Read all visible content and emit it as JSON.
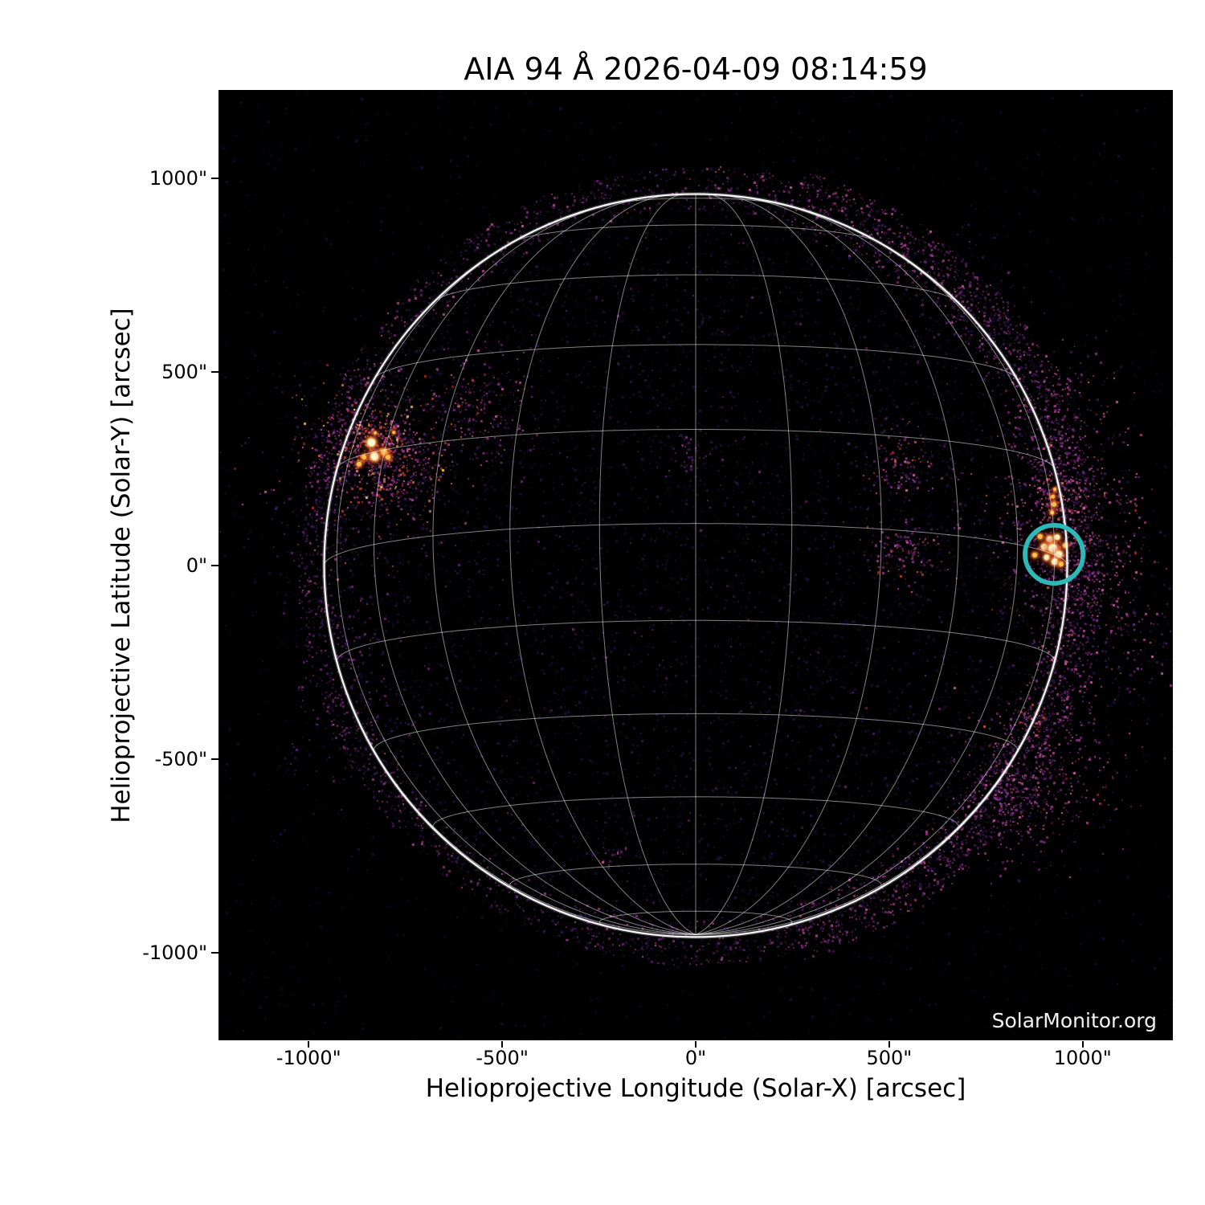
{
  "chart_data": {
    "type": "heatmap",
    "title": "AIA 94 Å 2026-04-09 08:14:59",
    "instrument": "AIA",
    "wavelength": "94 Å",
    "datetime": "2026-04-09 08:14:59",
    "watermark": "SolarMonitor.org",
    "xlabel": "Helioprojective Longitude (Solar-X) [arcsec]",
    "ylabel": "Helioprojective Latitude (Solar-Y) [arcsec]",
    "xlim": [
      -1233,
      1233
    ],
    "ylim": [
      -1227,
      1229
    ],
    "x_ticks": [
      {
        "value": -1000,
        "label": "-1000\""
      },
      {
        "value": -500,
        "label": "-500\""
      },
      {
        "value": 0,
        "label": "0\""
      },
      {
        "value": 500,
        "label": "500\""
      },
      {
        "value": 1000,
        "label": "1000\""
      }
    ],
    "y_ticks": [
      {
        "value": 1000,
        "label": "1000\""
      },
      {
        "value": 500,
        "label": "500\""
      },
      {
        "value": 0,
        "label": "0\""
      },
      {
        "value": -500,
        "label": "-500\""
      },
      {
        "value": -1000,
        "label": "-1000\""
      }
    ],
    "background_color": "#000000",
    "page_color": "#ffffff",
    "solar_limb": {
      "radius_arcsec": 960,
      "color": "#f8f8f8"
    },
    "grid": {
      "type": "heliographic",
      "b0_deg": -6.5,
      "meridian_step_deg": 15,
      "parallel_step_deg": 15,
      "parallel_max_deg": 75,
      "color": "#ffffff",
      "opacity": 0.5
    },
    "annotation_circle": {
      "x": 926,
      "y": 29,
      "radius_arcsec": 75,
      "color": "#2eb9b9",
      "stroke_arcsec": 12,
      "meaning": "circled active region on east limb"
    },
    "active_regions": [
      {
        "name": "AR-northeast-cluster",
        "blobs": [
          {
            "x": -838,
            "y": 318,
            "r": 10,
            "core": true
          },
          {
            "x": -830,
            "y": 282,
            "r": 10,
            "core": true
          },
          {
            "x": -805,
            "y": 293,
            "r": 8,
            "core": false
          },
          {
            "x": -795,
            "y": 280,
            "r": 6,
            "core": false
          },
          {
            "x": -857,
            "y": 280,
            "r": 6,
            "core": false
          },
          {
            "x": -870,
            "y": 262,
            "r": 6,
            "core": false
          },
          {
            "x": -780,
            "y": 344,
            "r": 4,
            "core": false
          },
          {
            "x": -828,
            "y": 343,
            "r": 4,
            "core": false
          }
        ]
      },
      {
        "name": "AR-east-limb-circled",
        "blobs": [
          {
            "x": 915,
            "y": 68,
            "r": 8,
            "core": true
          },
          {
            "x": 934,
            "y": 73,
            "r": 7,
            "core": true
          },
          {
            "x": 901,
            "y": 48,
            "r": 8,
            "core": true
          },
          {
            "x": 923,
            "y": 44,
            "r": 11,
            "core": true
          },
          {
            "x": 938,
            "y": 29,
            "r": 9,
            "core": true
          },
          {
            "x": 907,
            "y": 21,
            "r": 7,
            "core": true
          },
          {
            "x": 928,
            "y": 10,
            "r": 8,
            "core": true
          },
          {
            "x": 876,
            "y": 27,
            "r": 6,
            "core": false
          },
          {
            "x": 955,
            "y": 52,
            "r": 6,
            "core": false
          },
          {
            "x": 944,
            "y": 4,
            "r": 6,
            "core": false
          },
          {
            "x": 890,
            "y": 75,
            "r": 6,
            "core": false
          }
        ]
      },
      {
        "name": "AR-limb-streak",
        "blobs": [
          {
            "x": 923,
            "y": 178,
            "r": 5,
            "core": false
          },
          {
            "x": 926,
            "y": 158,
            "r": 6,
            "core": false
          },
          {
            "x": 928,
            "y": 197,
            "r": 4,
            "core": false
          },
          {
            "x": 921,
            "y": 137,
            "r": 5,
            "core": false
          }
        ]
      }
    ],
    "speckle": {
      "seed": 1234,
      "base_count": 2600,
      "disk_count": 5200,
      "limb_band_count": 3200,
      "east_band_count": 1600,
      "palettes": {
        "base": [
          "#120828",
          "#1a0d3c",
          "#22104a",
          "#0e0620"
        ],
        "disk": [
          "#27114a",
          "#321659",
          "#3d1b66",
          "#1b0c38"
        ],
        "magenta": [
          "#5f1e74",
          "#762786",
          "#8d3090",
          "#4c1860"
        ],
        "pink": [
          "#b23f93",
          "#c9519f",
          "#a03588",
          "#d862a8"
        ],
        "hot": [
          "#e25b88",
          "#ef6f9e"
        ],
        "ember": [
          "#c23b22",
          "#d9542c",
          "#ea7230",
          "#b02e1e"
        ],
        "gold": [
          "#ffb347",
          "#ffd24d",
          "#ffe89a"
        ]
      },
      "clusters": [
        {
          "x": -832,
          "y": 297,
          "spread": 95,
          "count": 650,
          "mix": {
            "pink": 30,
            "magenta": 35,
            "ember": 20,
            "gold": 5,
            "hot": 10
          }
        },
        {
          "x": -884,
          "y": 214,
          "spread": 150,
          "count": 320,
          "mix": {
            "magenta": 65,
            "disk": 25,
            "pink": 10
          }
        },
        {
          "x": -843,
          "y": 320,
          "spread": 38,
          "count": 200,
          "mix": {
            "ember": 45,
            "pink": 25,
            "magenta": 20,
            "gold": 10
          }
        },
        {
          "x": -755,
          "y": 240,
          "spread": 60,
          "count": 160,
          "mix": {
            "magenta": 50,
            "pink": 30,
            "ember": 20
          }
        },
        {
          "x": -560,
          "y": 420,
          "spread": 85,
          "count": 240,
          "mix": {
            "magenta": 55,
            "pink": 30,
            "ember": 15
          }
        },
        {
          "x": -23,
          "y": 286,
          "spread": 28,
          "count": 45,
          "mix": {
            "magenta": 70,
            "pink": 30
          }
        },
        {
          "x": 523,
          "y": 266,
          "spread": 48,
          "count": 150,
          "mix": {
            "magenta": 50,
            "pink": 35,
            "ember": 15
          }
        },
        {
          "x": 538,
          "y": 37,
          "spread": 48,
          "count": 150,
          "mix": {
            "magenta": 50,
            "pink": 35,
            "ember": 15
          }
        },
        {
          "x": 942,
          "y": 100,
          "spread": 120,
          "count": 600,
          "mix": {
            "magenta": 40,
            "pink": 35,
            "hot": 15,
            "ember": 10
          }
        },
        {
          "x": 963,
          "y": 380,
          "spread": 95,
          "count": 240,
          "mix": {
            "magenta": 60,
            "pink": 30,
            "ember": 10
          }
        },
        {
          "x": 921,
          "y": 168,
          "spread": 30,
          "count": 80,
          "mix": {
            "ember": 45,
            "pink": 30,
            "magenta": 25
          }
        },
        {
          "x": 994,
          "y": -35,
          "spread": 100,
          "count": 260,
          "mix": {
            "magenta": 55,
            "pink": 35,
            "disk": 10
          }
        },
        {
          "x": 1087,
          "y": -201,
          "spread": 90,
          "count": 170,
          "mix": {
            "magenta": 65,
            "pink": 25,
            "disk": 10
          }
        },
        {
          "x": 900,
          "y": -513,
          "spread": 110,
          "count": 420,
          "mix": {
            "magenta": 45,
            "pink": 35,
            "hot": 10,
            "ember": 10
          }
        },
        {
          "x": 818,
          "y": -616,
          "spread": 85,
          "count": 230,
          "mix": {
            "magenta": 60,
            "pink": 30,
            "disk": 10
          }
        },
        {
          "x": 870,
          "y": -398,
          "spread": 16,
          "count": 22,
          "mix": {
            "ember": 60,
            "gold": 25,
            "pink": 15
          }
        },
        {
          "x": 693,
          "y": 691,
          "spread": 85,
          "count": 120,
          "mix": {
            "magenta": 70,
            "disk": 30
          }
        },
        {
          "x": -926,
          "y": -201,
          "spread": 80,
          "count": 100,
          "mix": {
            "magenta": 70,
            "disk": 30
          }
        },
        {
          "x": -880,
          "y": -420,
          "spread": 100,
          "count": 130,
          "mix": {
            "magenta": 70,
            "disk": 30
          }
        },
        {
          "x": -210,
          "y": -747,
          "spread": 16,
          "count": 20,
          "mix": {
            "pink": 50,
            "hot": 30,
            "magenta": 20
          }
        }
      ]
    },
    "ar_colors": {
      "core": "#fff7cf",
      "mid_core": "#ffb14e",
      "mid_warm": "#ff8c2e",
      "fringe": "#cc4422",
      "warm_core": "#ffc24e"
    }
  }
}
